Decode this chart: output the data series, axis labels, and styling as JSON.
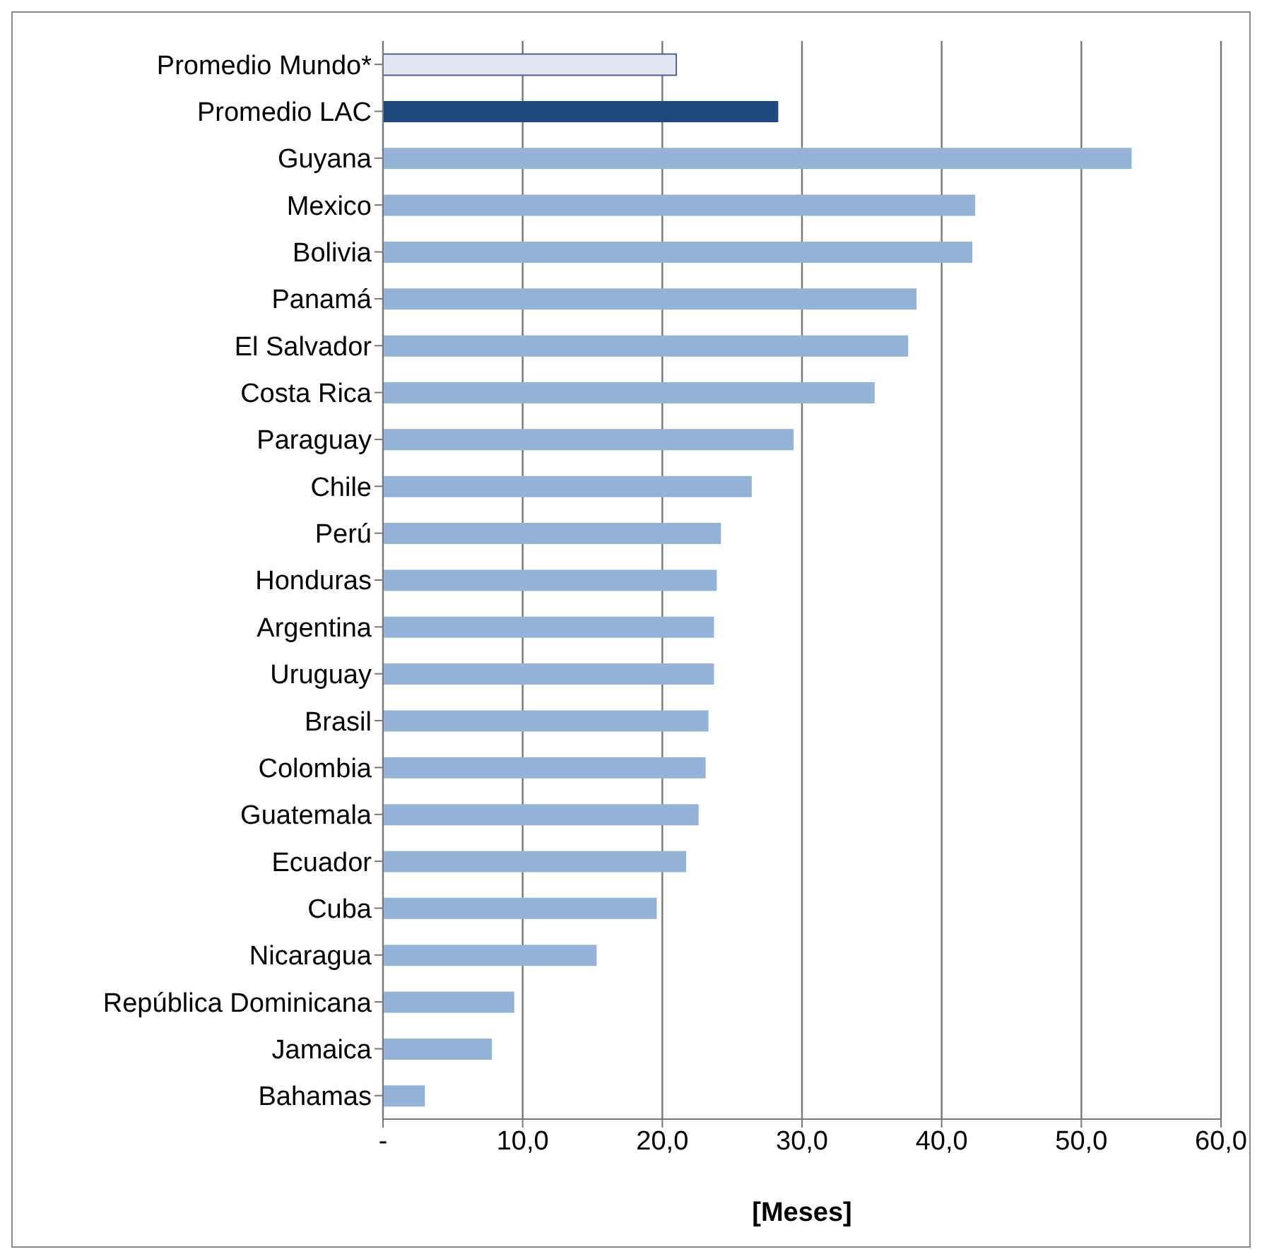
{
  "chart_data": {
    "type": "bar",
    "orientation": "horizontal",
    "xlabel": "[Meses]",
    "categories": [
      "Promedio Mundo*",
      "Promedio LAC",
      "Guyana",
      "Mexico",
      "Bolivia",
      "Panamá",
      "El Salvador",
      "Costa Rica",
      "Paraguay",
      "Chile",
      "Perú",
      "Honduras",
      "Argentina",
      "Uruguay",
      "Brasil",
      "Colombia",
      "Guatemala",
      "Ecuador",
      "Cuba",
      "Nicaragua",
      "República Dominicana",
      "Jamaica",
      "Bahamas"
    ],
    "values": [
      21.0,
      28.3,
      53.6,
      42.4,
      42.2,
      38.2,
      37.6,
      35.2,
      29.4,
      26.4,
      24.2,
      23.9,
      23.7,
      23.7,
      23.3,
      23.1,
      22.6,
      21.7,
      19.6,
      15.3,
      9.4,
      7.8,
      3.0
    ],
    "colors": [
      "#e4e6f4",
      "#1f497d",
      "#95b3d7",
      "#95b3d7",
      "#95b3d7",
      "#95b3d7",
      "#95b3d7",
      "#95b3d7",
      "#95b3d7",
      "#95b3d7",
      "#95b3d7",
      "#95b3d7",
      "#95b3d7",
      "#95b3d7",
      "#95b3d7",
      "#95b3d7",
      "#95b3d7",
      "#95b3d7",
      "#95b3d7",
      "#95b3d7",
      "#95b3d7",
      "#95b3d7",
      "#95b3d7"
    ],
    "xlim": [
      0,
      60
    ],
    "xticks": [
      {
        "value": 0,
        "label": "-"
      },
      {
        "value": 10,
        "label": "10,0"
      },
      {
        "value": 20,
        "label": "20,0"
      },
      {
        "value": 30,
        "label": "30,0"
      },
      {
        "value": 40,
        "label": "40,0"
      },
      {
        "value": 50,
        "label": "50,0"
      },
      {
        "value": 60,
        "label": "60,0"
      }
    ],
    "grid": "x"
  }
}
